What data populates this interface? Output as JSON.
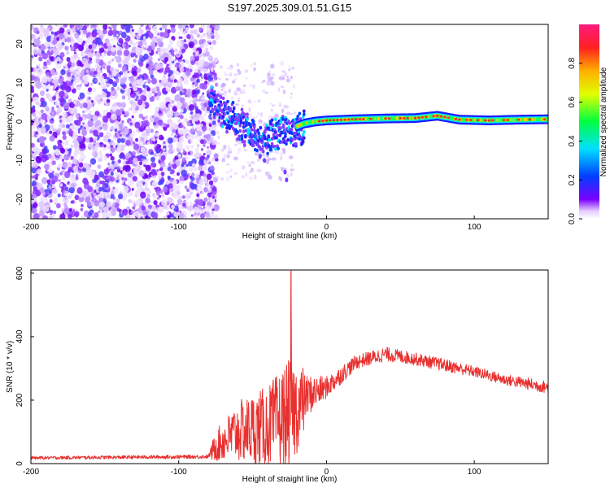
{
  "title": "S197.2025.309.01.51.G15",
  "chart_data": [
    {
      "type": "heatmap",
      "name": "spectrogram",
      "xlabel": "Height of straight line (km)",
      "ylabel": "Frequency (Hz)",
      "xlim": [
        -200,
        150
      ],
      "ylim": [
        -25,
        25
      ],
      "xticks": [
        -200,
        -100,
        0,
        100
      ],
      "yticks": [
        -20,
        -10,
        0,
        10,
        20
      ],
      "colorbar": {
        "label": "Normalized spectral amplitude",
        "range": [
          0,
          1
        ],
        "ticks": [
          "0.0",
          "0.2",
          "0.4",
          "0.6",
          "0.8"
        ],
        "colors": [
          "#ffffff",
          "#7a00ff",
          "#0040ff",
          "#00e0ff",
          "#00ff40",
          "#e0ff00",
          "#ffb000",
          "#ff2020",
          "#ff1a80"
        ]
      },
      "features": {
        "noise_region_x": [
          -200,
          -78
        ],
        "transition_x": [
          -80,
          -20
        ],
        "transition_freq_start": 8,
        "transition_freq_min": -5,
        "trace_freq": [
          [
            -80,
            7
          ],
          [
            -72,
            4
          ],
          [
            -65,
            2
          ],
          [
            -58,
            0
          ],
          [
            -50,
            -2
          ],
          [
            -44,
            -4
          ],
          [
            -38,
            -3
          ],
          [
            -30,
            -1
          ],
          [
            -22,
            -1.5
          ],
          [
            -15,
            -0.5
          ],
          [
            -8,
            0
          ],
          [
            0,
            0.3
          ],
          [
            20,
            0.6
          ],
          [
            40,
            0.8
          ],
          [
            60,
            0.9
          ],
          [
            75,
            1.5
          ],
          [
            90,
            0.5
          ],
          [
            110,
            0.3
          ],
          [
            130,
            0.5
          ],
          [
            150,
            0.6
          ]
        ]
      }
    },
    {
      "type": "line",
      "name": "snr",
      "xlabel": "Height of straight line (km)",
      "ylabel": "SNR (10 * v/v)",
      "xlim": [
        -200,
        150
      ],
      "ylim": [
        0,
        610
      ],
      "xticks": [
        -200,
        -100,
        0,
        100
      ],
      "yticks": [
        0,
        200,
        400,
        600
      ],
      "color": "#e8312f",
      "envelope": [
        {
          "x": -200,
          "base": 18,
          "spread": 10
        },
        {
          "x": -80,
          "base": 22,
          "spread": 12
        },
        {
          "x": -75,
          "base": 60,
          "spread": 60
        },
        {
          "x": -60,
          "base": 110,
          "spread": 120
        },
        {
          "x": -40,
          "base": 130,
          "spread": 160
        },
        {
          "x": -25,
          "base": 170,
          "spread": 220
        },
        {
          "x": -15,
          "base": 210,
          "spread": 140
        },
        {
          "x": 0,
          "base": 240,
          "spread": 70
        },
        {
          "x": 20,
          "base": 320,
          "spread": 45
        },
        {
          "x": 40,
          "base": 345,
          "spread": 45
        },
        {
          "x": 60,
          "base": 330,
          "spread": 40
        },
        {
          "x": 80,
          "base": 310,
          "spread": 40
        },
        {
          "x": 100,
          "base": 290,
          "spread": 35
        },
        {
          "x": 120,
          "base": 265,
          "spread": 35
        },
        {
          "x": 150,
          "base": 240,
          "spread": 40
        }
      ],
      "peak": {
        "x": -24,
        "y": 610
      }
    }
  ]
}
